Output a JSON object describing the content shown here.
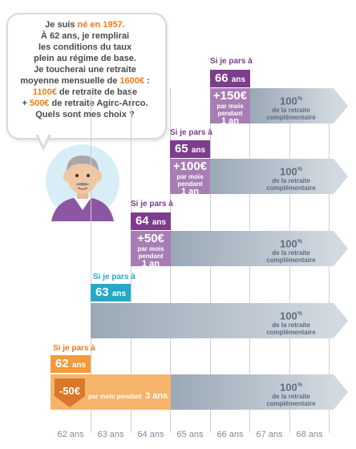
{
  "bubble": {
    "line1a": "Je suis ",
    "line1b": "né en 1957.",
    "line2": "À 62 ans, je remplirai",
    "line3": "les conditions du taux",
    "line4": "plein au régime de base.",
    "line5": "Je toucherai une retraite",
    "line6a": "moyenne mensuelle de ",
    "line6b": "1600€",
    "line7a": "1100€",
    "line7b": " de retraite de base",
    "line8a": "+ ",
    "line8b": "500€",
    "line8c": " de retraite Agirc-Arrco.",
    "line9": "Quels sont mes choix ?"
  },
  "scenarios": [
    {
      "head": "Si je pars à",
      "age": "62",
      "unit": "ans",
      "pct": "100",
      "pct_sup": "%",
      "lbl1": "de la retraite",
      "lbl2": "complémentaire",
      "malus": "-50€",
      "malus_text": "par mois pendant",
      "malus_dur": "3 ans"
    },
    {
      "head": "Si je pars à",
      "age": "63",
      "unit": "ans",
      "pct": "100",
      "pct_sup": "%",
      "lbl1": "de la retraite",
      "lbl2": "complémentaire"
    },
    {
      "head": "Si je pars à",
      "age": "64",
      "unit": "ans",
      "pct": "100",
      "pct_sup": "%",
      "lbl1": "de la retraite",
      "lbl2": "complémentaire",
      "bonus": "+50€",
      "b1": "par mois",
      "b2": "pendant",
      "b3": "1 an"
    },
    {
      "head": "Si je pars à",
      "age": "65",
      "unit": "ans",
      "pct": "100",
      "pct_sup": "%",
      "lbl1": "de la retraite",
      "lbl2": "complémentaire",
      "bonus": "+100€",
      "b1": "par mois",
      "b2": "pendant",
      "b3": "1 an"
    },
    {
      "head": "Si je pars à",
      "age": "66",
      "unit": "ans",
      "pct": "100",
      "pct_sup": "%",
      "lbl1": "de la retraite",
      "lbl2": "complémentaire",
      "bonus": "+150€",
      "b1": "par mois",
      "b2": "pendant",
      "b3": "1 an"
    }
  ],
  "axis": [
    "62 ans",
    "63 ans",
    "64 ans",
    "65 ans",
    "66 ans",
    "67 ans",
    "68 ans"
  ],
  "colors": {
    "orange": "#f39a3e",
    "teal": "#26a9c9",
    "purple": "#7d3c8c",
    "grey": "#b9c3ce",
    "text": "#5d6c80"
  }
}
